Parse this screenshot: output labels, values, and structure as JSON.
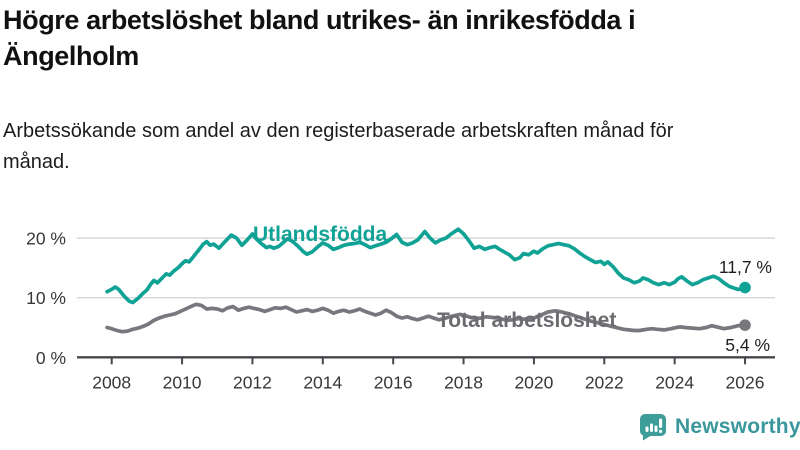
{
  "title": "Högre arbetslöshet bland utrikes- än inrikesfödda i Ängelholm",
  "subtitle": "Arbetssökande som andel av den registerbaserade arbetskraften månad för månad.",
  "branding": {
    "logo_text": "Newsworthy",
    "icon": "bar-chart-speech-bubble-icon",
    "icon_color": "#3D9D98",
    "text_color": "#3A979B"
  },
  "colors": {
    "foreign_born_line": "#11A296",
    "total_line": "#77777D",
    "total_label": "#6B6B70",
    "gridline": "#D8D8D8",
    "axis": "#47474D",
    "tick_label": "#383838",
    "value_label": "#1F1F1F"
  },
  "chart_data": {
    "type": "line",
    "title": "",
    "xlabel": "",
    "ylabel": "",
    "grid": "horizontal",
    "legend_position": "inline-labels",
    "xlim": [
      2007.3,
      2026.85
    ],
    "ylim": [
      0,
      24
    ],
    "x_tick_years": [
      2008,
      2010,
      2012,
      2014,
      2016,
      2018,
      2020,
      2022,
      2024,
      2026
    ],
    "x_tick_labels": [
      "2008",
      "2010",
      "2012",
      "2014",
      "2016",
      "2018",
      "2020",
      "2022",
      "2024",
      "2026"
    ],
    "y_ticks": [
      {
        "value": 0,
        "label": "0 %"
      },
      {
        "value": 10,
        "label": "10 %"
      },
      {
        "value": 20,
        "label": "20 %"
      }
    ],
    "series": [
      {
        "name": "Utlandsfödda",
        "color": "#11A296",
        "end_value": 11.7,
        "end_label": "11,7 %",
        "points": [
          [
            2007.87,
            11.0
          ],
          [
            2008.0,
            11.4
          ],
          [
            2008.1,
            11.8
          ],
          [
            2008.2,
            11.4
          ],
          [
            2008.35,
            10.3
          ],
          [
            2008.5,
            9.4
          ],
          [
            2008.6,
            9.2
          ],
          [
            2008.75,
            9.9
          ],
          [
            2008.9,
            10.8
          ],
          [
            2009.0,
            11.3
          ],
          [
            2009.1,
            12.2
          ],
          [
            2009.2,
            12.9
          ],
          [
            2009.3,
            12.5
          ],
          [
            2009.45,
            13.4
          ],
          [
            2009.55,
            14.0
          ],
          [
            2009.65,
            13.8
          ],
          [
            2009.75,
            14.4
          ],
          [
            2009.9,
            15.1
          ],
          [
            2010.0,
            15.7
          ],
          [
            2010.1,
            16.2
          ],
          [
            2010.2,
            16.0
          ],
          [
            2010.35,
            17.1
          ],
          [
            2010.5,
            18.2
          ],
          [
            2010.6,
            19.0
          ],
          [
            2010.7,
            19.4
          ],
          [
            2010.8,
            18.8
          ],
          [
            2010.9,
            19.0
          ],
          [
            2011.05,
            18.3
          ],
          [
            2011.2,
            19.3
          ],
          [
            2011.4,
            20.5
          ],
          [
            2011.55,
            20.0
          ],
          [
            2011.7,
            18.8
          ],
          [
            2011.85,
            19.7
          ],
          [
            2012.0,
            20.7
          ],
          [
            2012.1,
            19.9
          ],
          [
            2012.25,
            19.1
          ],
          [
            2012.4,
            18.4
          ],
          [
            2012.5,
            18.6
          ],
          [
            2012.6,
            18.3
          ],
          [
            2012.75,
            18.6
          ],
          [
            2012.9,
            19.4
          ],
          [
            2013.0,
            19.9
          ],
          [
            2013.15,
            19.4
          ],
          [
            2013.3,
            18.6
          ],
          [
            2013.45,
            17.7
          ],
          [
            2013.55,
            17.3
          ],
          [
            2013.7,
            17.7
          ],
          [
            2013.85,
            18.5
          ],
          [
            2014.0,
            19.2
          ],
          [
            2014.15,
            18.8
          ],
          [
            2014.3,
            18.1
          ],
          [
            2014.45,
            18.4
          ],
          [
            2014.6,
            18.8
          ],
          [
            2014.75,
            19.0
          ],
          [
            2014.9,
            19.1
          ],
          [
            2015.05,
            19.3
          ],
          [
            2015.2,
            18.9
          ],
          [
            2015.35,
            18.4
          ],
          [
            2015.5,
            18.7
          ],
          [
            2015.65,
            19.0
          ],
          [
            2015.8,
            19.3
          ],
          [
            2015.95,
            19.9
          ],
          [
            2016.1,
            20.6
          ],
          [
            2016.25,
            19.3
          ],
          [
            2016.4,
            18.9
          ],
          [
            2016.55,
            19.2
          ],
          [
            2016.7,
            19.7
          ],
          [
            2016.9,
            21.1
          ],
          [
            2017.05,
            20.0
          ],
          [
            2017.2,
            19.2
          ],
          [
            2017.35,
            19.7
          ],
          [
            2017.5,
            20.0
          ],
          [
            2017.65,
            20.7
          ],
          [
            2017.85,
            21.5
          ],
          [
            2018.0,
            20.7
          ],
          [
            2018.15,
            19.6
          ],
          [
            2018.3,
            18.3
          ],
          [
            2018.45,
            18.6
          ],
          [
            2018.6,
            18.1
          ],
          [
            2018.75,
            18.4
          ],
          [
            2018.9,
            18.6
          ],
          [
            2019.0,
            18.2
          ],
          [
            2019.15,
            17.7
          ],
          [
            2019.3,
            17.2
          ],
          [
            2019.45,
            16.4
          ],
          [
            2019.6,
            16.7
          ],
          [
            2019.7,
            17.4
          ],
          [
            2019.85,
            17.2
          ],
          [
            2020.0,
            17.8
          ],
          [
            2020.1,
            17.5
          ],
          [
            2020.25,
            18.2
          ],
          [
            2020.4,
            18.7
          ],
          [
            2020.55,
            18.9
          ],
          [
            2020.7,
            19.1
          ],
          [
            2020.85,
            18.9
          ],
          [
            2021.0,
            18.7
          ],
          [
            2021.15,
            18.2
          ],
          [
            2021.3,
            17.5
          ],
          [
            2021.45,
            16.9
          ],
          [
            2021.6,
            16.4
          ],
          [
            2021.75,
            15.9
          ],
          [
            2021.9,
            16.1
          ],
          [
            2022.0,
            15.6
          ],
          [
            2022.1,
            16.0
          ],
          [
            2022.25,
            15.2
          ],
          [
            2022.4,
            14.1
          ],
          [
            2022.55,
            13.3
          ],
          [
            2022.7,
            13.0
          ],
          [
            2022.85,
            12.5
          ],
          [
            2023.0,
            12.8
          ],
          [
            2023.1,
            13.3
          ],
          [
            2023.25,
            13.0
          ],
          [
            2023.4,
            12.5
          ],
          [
            2023.55,
            12.2
          ],
          [
            2023.7,
            12.5
          ],
          [
            2023.85,
            12.2
          ],
          [
            2024.0,
            12.6
          ],
          [
            2024.1,
            13.2
          ],
          [
            2024.2,
            13.5
          ],
          [
            2024.35,
            12.8
          ],
          [
            2024.5,
            12.2
          ],
          [
            2024.65,
            12.5
          ],
          [
            2024.8,
            13.0
          ],
          [
            2024.95,
            13.3
          ],
          [
            2025.1,
            13.6
          ],
          [
            2025.25,
            13.2
          ],
          [
            2025.4,
            12.5
          ],
          [
            2025.55,
            11.9
          ],
          [
            2025.7,
            11.6
          ],
          [
            2025.8,
            11.4
          ],
          [
            2025.9,
            11.5
          ],
          [
            2026.0,
            11.7
          ]
        ]
      },
      {
        "name": "Total arbetslöshet",
        "color": "#77777D",
        "end_value": 5.4,
        "end_label": "5,4 %",
        "points": [
          [
            2007.87,
            5.0
          ],
          [
            2008.0,
            4.8
          ],
          [
            2008.15,
            4.5
          ],
          [
            2008.3,
            4.3
          ],
          [
            2008.45,
            4.4
          ],
          [
            2008.6,
            4.7
          ],
          [
            2008.75,
            4.9
          ],
          [
            2008.9,
            5.2
          ],
          [
            2009.05,
            5.6
          ],
          [
            2009.2,
            6.2
          ],
          [
            2009.35,
            6.6
          ],
          [
            2009.5,
            6.9
          ],
          [
            2009.65,
            7.1
          ],
          [
            2009.8,
            7.3
          ],
          [
            2009.95,
            7.7
          ],
          [
            2010.1,
            8.1
          ],
          [
            2010.25,
            8.5
          ],
          [
            2010.4,
            8.9
          ],
          [
            2010.55,
            8.7
          ],
          [
            2010.7,
            8.1
          ],
          [
            2010.85,
            8.2
          ],
          [
            2011.0,
            8.1
          ],
          [
            2011.15,
            7.8
          ],
          [
            2011.3,
            8.3
          ],
          [
            2011.45,
            8.5
          ],
          [
            2011.6,
            7.9
          ],
          [
            2011.75,
            8.2
          ],
          [
            2011.9,
            8.4
          ],
          [
            2012.05,
            8.2
          ],
          [
            2012.2,
            8.0
          ],
          [
            2012.35,
            7.7
          ],
          [
            2012.5,
            8.0
          ],
          [
            2012.65,
            8.3
          ],
          [
            2012.8,
            8.2
          ],
          [
            2012.95,
            8.4
          ],
          [
            2013.1,
            8.0
          ],
          [
            2013.25,
            7.6
          ],
          [
            2013.4,
            7.8
          ],
          [
            2013.55,
            8.0
          ],
          [
            2013.7,
            7.7
          ],
          [
            2013.85,
            7.9
          ],
          [
            2014.0,
            8.2
          ],
          [
            2014.15,
            7.9
          ],
          [
            2014.3,
            7.4
          ],
          [
            2014.45,
            7.7
          ],
          [
            2014.6,
            7.9
          ],
          [
            2014.75,
            7.6
          ],
          [
            2014.9,
            7.8
          ],
          [
            2015.05,
            8.1
          ],
          [
            2015.2,
            7.7
          ],
          [
            2015.35,
            7.4
          ],
          [
            2015.5,
            7.1
          ],
          [
            2015.65,
            7.4
          ],
          [
            2015.8,
            7.9
          ],
          [
            2015.95,
            7.5
          ],
          [
            2016.1,
            6.9
          ],
          [
            2016.25,
            6.6
          ],
          [
            2016.4,
            6.8
          ],
          [
            2016.55,
            6.5
          ],
          [
            2016.7,
            6.3
          ],
          [
            2016.85,
            6.6
          ],
          [
            2017.0,
            6.9
          ],
          [
            2017.15,
            6.6
          ],
          [
            2017.3,
            6.3
          ],
          [
            2017.45,
            6.5
          ],
          [
            2017.6,
            6.8
          ],
          [
            2017.75,
            7.0
          ],
          [
            2017.9,
            7.2
          ],
          [
            2018.05,
            7.0
          ],
          [
            2018.2,
            6.7
          ],
          [
            2018.35,
            6.5
          ],
          [
            2018.5,
            6.6
          ],
          [
            2018.65,
            6.8
          ],
          [
            2018.8,
            6.7
          ],
          [
            2018.95,
            6.6
          ],
          [
            2019.1,
            6.4
          ],
          [
            2019.25,
            6.2
          ],
          [
            2019.4,
            6.3
          ],
          [
            2019.55,
            6.5
          ],
          [
            2019.7,
            6.4
          ],
          [
            2019.85,
            6.5
          ],
          [
            2020.0,
            6.6
          ],
          [
            2020.2,
            7.1
          ],
          [
            2020.4,
            7.6
          ],
          [
            2020.6,
            7.8
          ],
          [
            2020.8,
            7.6
          ],
          [
            2021.0,
            7.3
          ],
          [
            2021.2,
            6.9
          ],
          [
            2021.4,
            6.5
          ],
          [
            2021.6,
            6.1
          ],
          [
            2021.8,
            5.8
          ],
          [
            2022.0,
            5.5
          ],
          [
            2022.2,
            5.2
          ],
          [
            2022.4,
            4.9
          ],
          [
            2022.55,
            4.7
          ],
          [
            2022.7,
            4.6
          ],
          [
            2022.85,
            4.5
          ],
          [
            2023.0,
            4.5
          ],
          [
            2023.2,
            4.7
          ],
          [
            2023.35,
            4.8
          ],
          [
            2023.5,
            4.7
          ],
          [
            2023.7,
            4.6
          ],
          [
            2023.9,
            4.8
          ],
          [
            2024.05,
            5.0
          ],
          [
            2024.15,
            5.1
          ],
          [
            2024.3,
            5.0
          ],
          [
            2024.5,
            4.9
          ],
          [
            2024.7,
            4.8
          ],
          [
            2024.9,
            5.0
          ],
          [
            2025.05,
            5.3
          ],
          [
            2025.2,
            5.1
          ],
          [
            2025.4,
            4.8
          ],
          [
            2025.6,
            5.0
          ],
          [
            2025.8,
            5.3
          ],
          [
            2026.0,
            5.4
          ]
        ]
      }
    ]
  }
}
